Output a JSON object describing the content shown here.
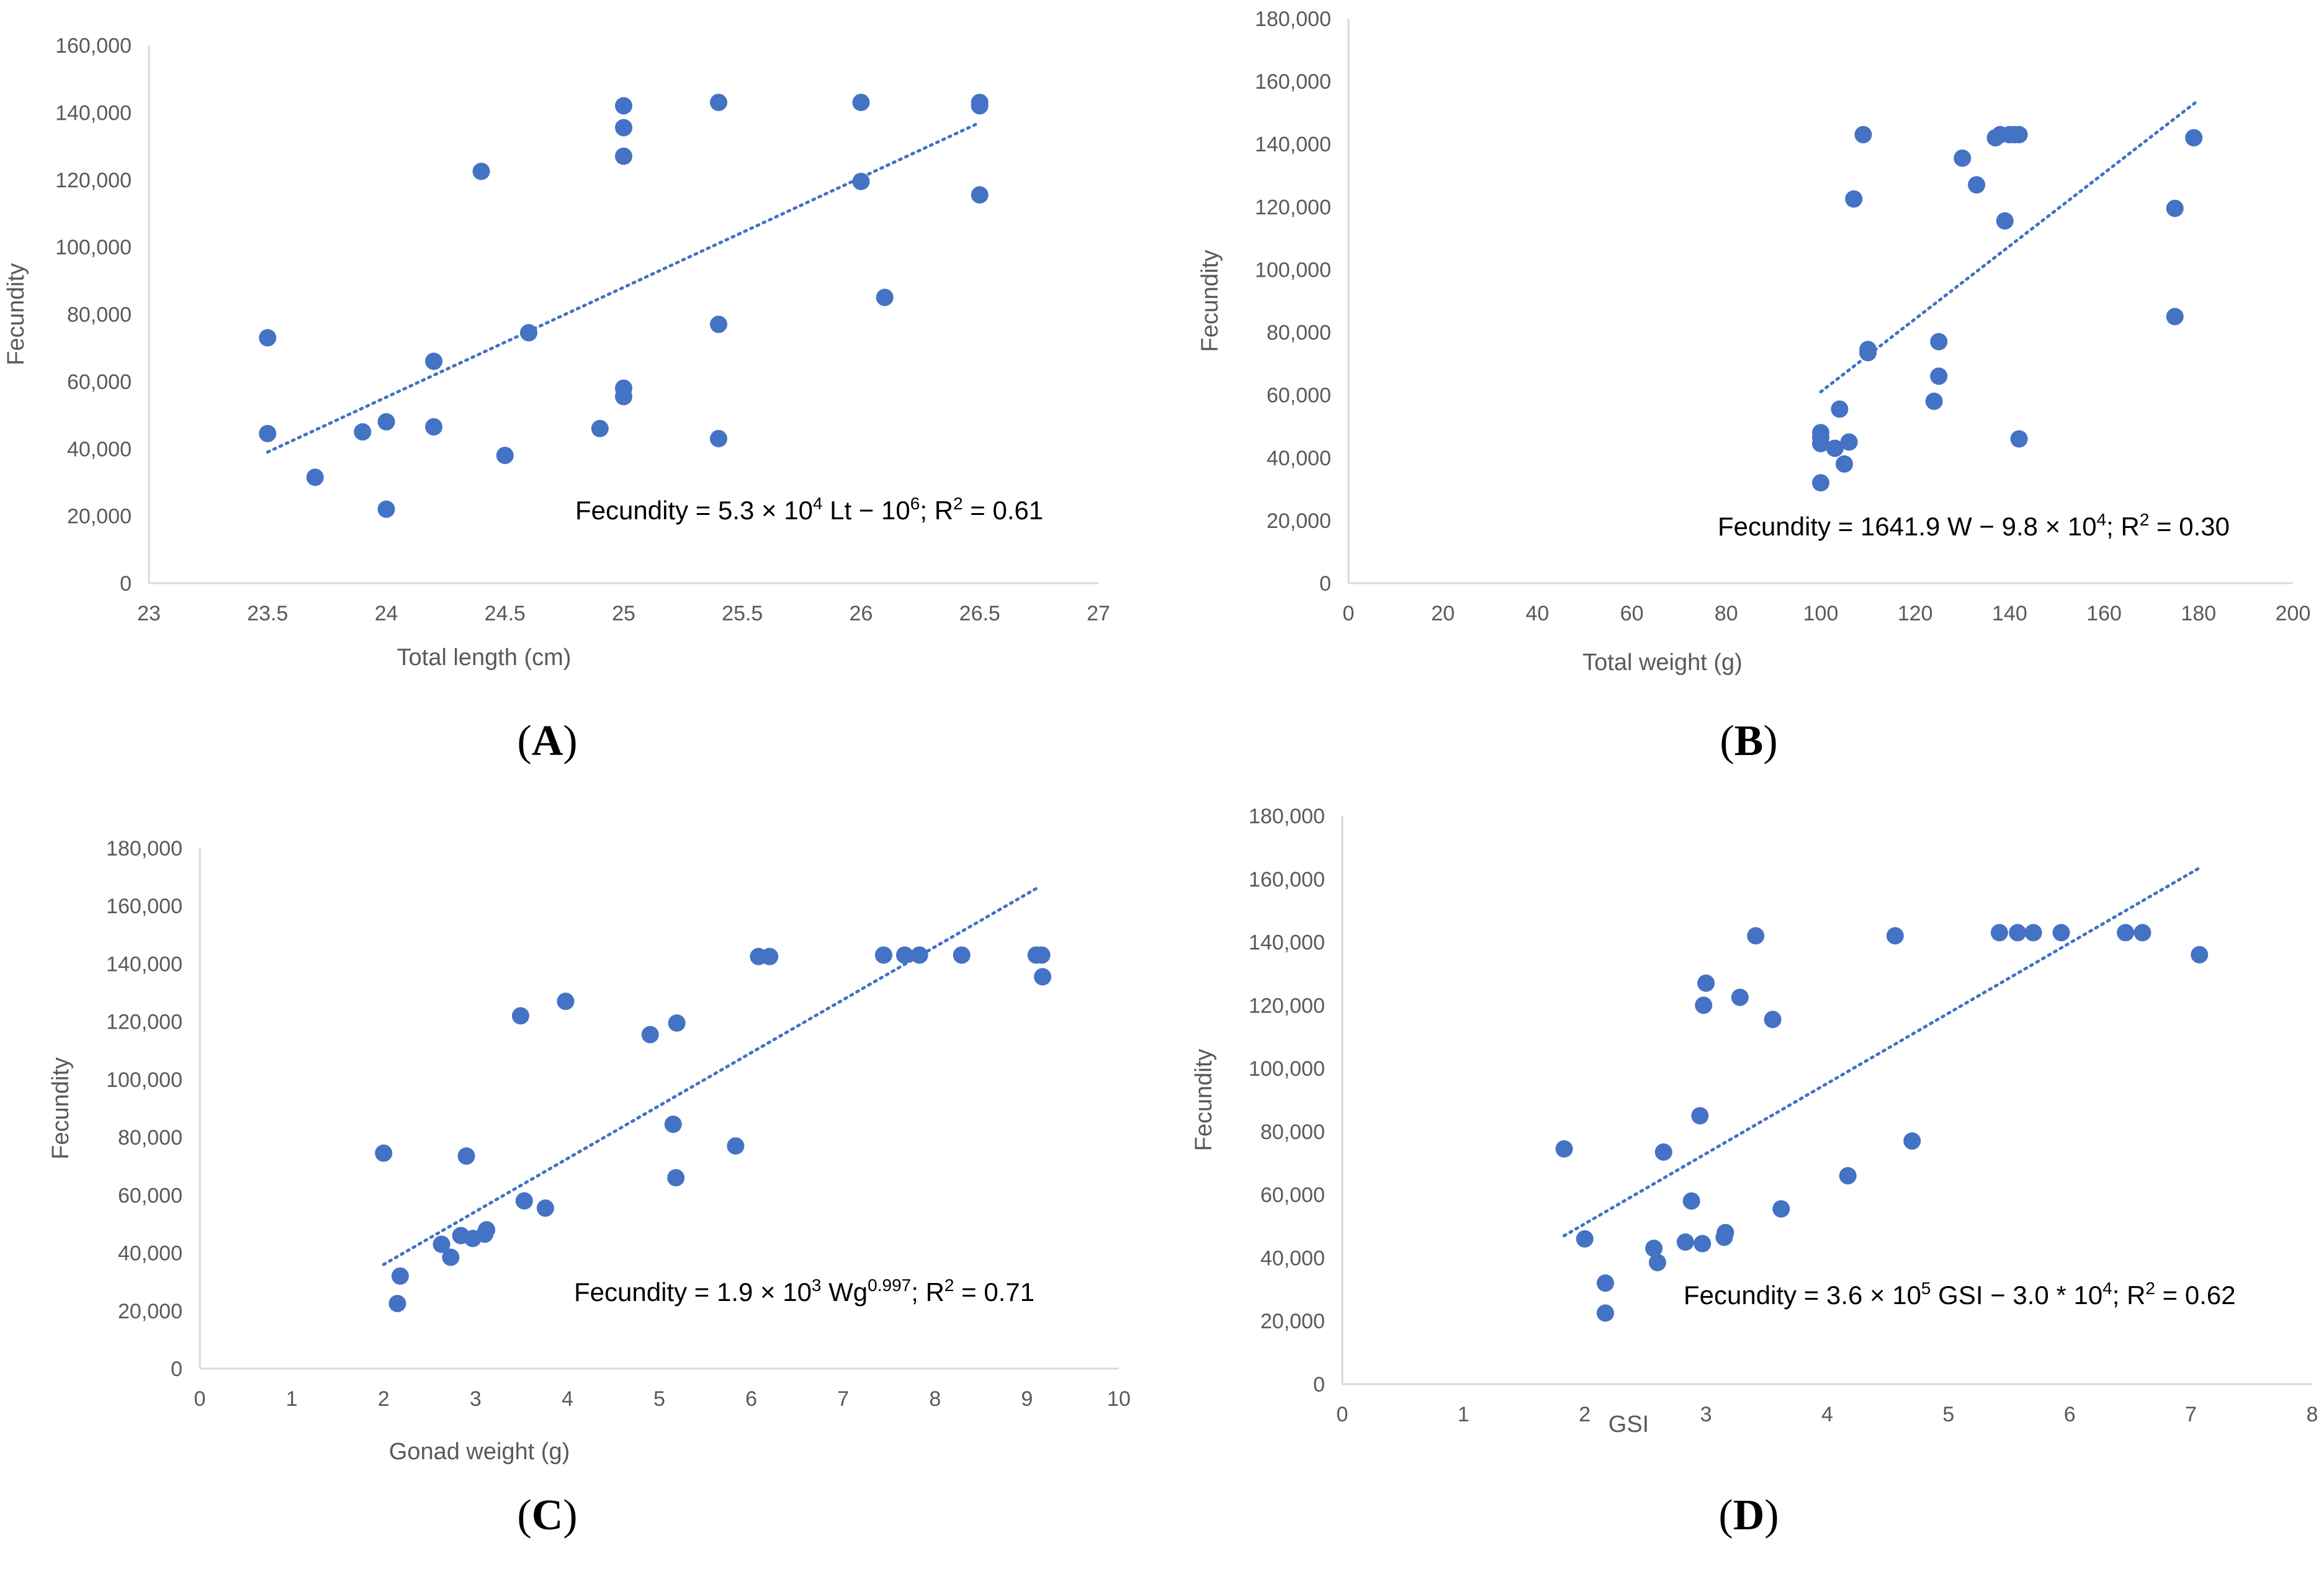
{
  "colors": {
    "marker": "#4472c4",
    "axis": "#d9d9d9",
    "tick_text": "#595959"
  },
  "chart_data": [
    {
      "type": "scatter",
      "panel": "A",
      "panel_label": [
        "(",
        "A",
        ")"
      ],
      "xlabel": "Total length (cm)",
      "ylabel": "Fecundity",
      "xlim": [
        23,
        27
      ],
      "ylim": [
        0,
        160000
      ],
      "xticks": [
        23,
        23.5,
        24,
        24.5,
        25,
        25.5,
        26,
        26.5,
        27
      ],
      "yticks": [
        0,
        20000,
        40000,
        60000,
        80000,
        100000,
        120000,
        140000,
        160000
      ],
      "annotation": [
        {
          "t": "Fecundity = 5.3 × 10"
        },
        {
          "t": "4",
          "sup": true
        },
        {
          "t": " Lt − 10"
        },
        {
          "t": "6",
          "sup": true
        },
        {
          "t": "; R"
        },
        {
          "t": "2",
          "sup": true
        },
        {
          "t": " = 0.61"
        }
      ],
      "trendline": [
        [
          23.5,
          39000
        ],
        [
          26.5,
          137000
        ]
      ],
      "x": [
        23.5,
        23.5,
        23.7,
        23.9,
        24.0,
        24.0,
        24.2,
        24.2,
        24.4,
        24.5,
        24.6,
        24.9,
        25.0,
        25.0,
        25.0,
        25.0,
        25.0,
        25.4,
        25.4,
        25.4,
        26.0,
        26.0,
        26.1,
        26.5,
        26.5,
        26.5
      ],
      "y": [
        73000,
        44500,
        31500,
        45000,
        48000,
        22000,
        66000,
        46500,
        122500,
        38000,
        74500,
        46000,
        142000,
        135500,
        127000,
        58000,
        55500,
        143000,
        77000,
        43000,
        143000,
        119500,
        85000,
        143000,
        142000,
        115500
      ]
    },
    {
      "type": "scatter",
      "panel": "B",
      "panel_label": [
        "(",
        "B",
        ")"
      ],
      "xlabel": "Total weight (g)",
      "ylabel": "Fecundity",
      "xlim": [
        0,
        200
      ],
      "ylim": [
        0,
        180000
      ],
      "xticks": [
        0,
        20,
        40,
        60,
        80,
        100,
        120,
        140,
        160,
        180,
        200
      ],
      "yticks": [
        0,
        20000,
        40000,
        60000,
        80000,
        100000,
        120000,
        140000,
        160000,
        180000
      ],
      "annotation": [
        {
          "t": "Fecundity = 1641.9 W − 9.8 × 10"
        },
        {
          "t": "4",
          "sup": true
        },
        {
          "t": "; R"
        },
        {
          "t": "2",
          "sup": true
        },
        {
          "t": " = 0.30"
        }
      ],
      "trendline": [
        [
          100,
          61000
        ],
        [
          180,
          154000
        ]
      ],
      "x": [
        100,
        100,
        100,
        100,
        103,
        104,
        105,
        106,
        107,
        109,
        110,
        110,
        124,
        125,
        125,
        130,
        133,
        137,
        138,
        139,
        140,
        141,
        142,
        142,
        175,
        175,
        179
      ],
      "y": [
        48000,
        46500,
        44500,
        32000,
        43000,
        55500,
        38000,
        45000,
        122500,
        143000,
        74500,
        73500,
        58000,
        77000,
        66000,
        135500,
        127000,
        142000,
        143000,
        115500,
        143000,
        143000,
        143000,
        46000,
        119500,
        85000,
        142000
      ]
    },
    {
      "type": "scatter",
      "panel": "C",
      "panel_label": [
        "(",
        "C",
        ")"
      ],
      "xlabel": "Gonad weight (g)",
      "ylabel": "Fecundity",
      "xlim": [
        0,
        10
      ],
      "ylim": [
        0,
        180000
      ],
      "xticks": [
        0,
        1,
        2,
        3,
        4,
        5,
        6,
        7,
        8,
        9,
        10
      ],
      "yticks": [
        0,
        20000,
        40000,
        60000,
        80000,
        100000,
        120000,
        140000,
        160000,
        180000
      ],
      "annotation": [
        {
          "t": "Fecundity = 1.9 × 10"
        },
        {
          "t": "3",
          "sup": true
        },
        {
          "t": " Wg"
        },
        {
          "t": "0.997",
          "sup": true
        },
        {
          "t": "; R"
        },
        {
          "t": "2",
          "sup": true
        },
        {
          "t": " = 0.71"
        }
      ],
      "trendline": [
        [
          2.0,
          36000
        ],
        [
          9.1,
          166000
        ]
      ],
      "x": [
        2.0,
        2.15,
        2.18,
        2.63,
        2.73,
        2.84,
        2.9,
        2.97,
        3.1,
        3.12,
        3.49,
        3.53,
        3.76,
        3.98,
        4.9,
        5.15,
        5.18,
        5.19,
        5.83,
        6.08,
        6.2,
        7.44,
        7.67,
        7.83,
        8.29,
        9.1,
        9.16,
        9.17
      ],
      "y": [
        74500,
        22500,
        32000,
        43000,
        38500,
        46000,
        73500,
        45000,
        46500,
        48000,
        122000,
        58000,
        55500,
        127000,
        115500,
        84500,
        66000,
        119500,
        77000,
        142500,
        142500,
        143000,
        143000,
        143000,
        143000,
        143000,
        143000,
        135500
      ]
    },
    {
      "type": "scatter",
      "panel": "D",
      "panel_label": [
        "(",
        "D",
        ")"
      ],
      "xlabel": "GSI",
      "ylabel": "Fecundity",
      "xlim": [
        0,
        8
      ],
      "ylim": [
        0,
        180000
      ],
      "xticks": [
        0,
        1,
        2,
        3,
        4,
        5,
        6,
        7,
        8
      ],
      "yticks": [
        0,
        20000,
        40000,
        60000,
        80000,
        100000,
        120000,
        140000,
        160000,
        180000
      ],
      "annotation": [
        {
          "t": "Fecundity = 3.6 × 10"
        },
        {
          "t": "5",
          "sup": true
        },
        {
          "t": " GSI − 3.0 * 10"
        },
        {
          "t": "4",
          "sup": true
        },
        {
          "t": "; R"
        },
        {
          "t": "2",
          "sup": true
        },
        {
          "t": " = 0.62"
        }
      ],
      "trendline": [
        [
          1.83,
          47000
        ],
        [
          7.07,
          163500
        ]
      ],
      "x": [
        1.83,
        2.0,
        2.17,
        2.17,
        2.57,
        2.6,
        2.65,
        2.83,
        2.88,
        2.95,
        2.97,
        2.98,
        3.0,
        3.15,
        3.16,
        3.28,
        3.41,
        3.55,
        3.62,
        4.17,
        4.56,
        4.7,
        5.42,
        5.57,
        5.7,
        5.93,
        6.46,
        6.6,
        7.07
      ],
      "y": [
        74500,
        46000,
        32000,
        22500,
        43000,
        38500,
        73500,
        45000,
        58000,
        85000,
        44500,
        120000,
        127000,
        46500,
        48000,
        122500,
        142000,
        115500,
        55500,
        66000,
        142000,
        77000,
        143000,
        143000,
        143000,
        143000,
        143000,
        143000,
        136000
      ]
    }
  ]
}
